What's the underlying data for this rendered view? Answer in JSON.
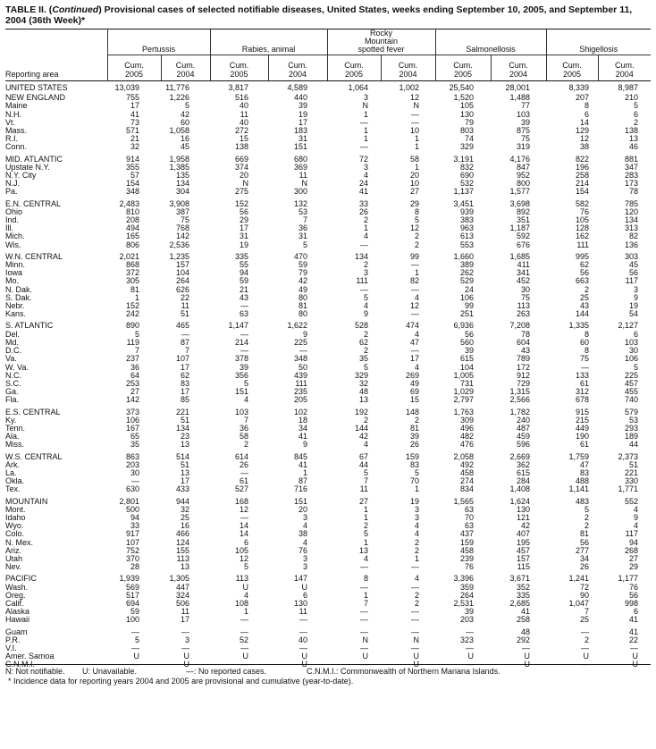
{
  "title": {
    "prefix": "TABLE II. (",
    "italic": "Continued",
    "rest": ") Provisional cases of selected notifiable diseases, United States, weeks ending September 10, 2005, and September 11, 2004 (36th Week)*"
  },
  "header": {
    "area_label": "Reporting area",
    "groups": [
      "Pertussis",
      "Rabies, animal",
      "Rocky Mountain spotted fever",
      "Salmonellosis",
      "Shigellosis"
    ],
    "sub": [
      {
        "l1": "Cum.",
        "l2": "2005"
      },
      {
        "l1": "Cum.",
        "l2": "2004"
      },
      {
        "l1": "Cum.",
        "l2": "2005"
      },
      {
        "l1": "Cum.",
        "l2": "2004"
      },
      {
        "l1": "Cum.",
        "l2": "2005"
      },
      {
        "l1": "Cum.",
        "l2": "2004"
      },
      {
        "l1": "Cum.",
        "l2": "2005"
      },
      {
        "l1": "Cum.",
        "l2": "2004"
      },
      {
        "l1": "Cum.",
        "l2": "2005"
      },
      {
        "l1": "Cum.",
        "l2": "2004"
      }
    ]
  },
  "row_groups": [
    [
      [
        "UNITED STATES",
        "13,039",
        "11,776",
        "3,817",
        "4,589",
        "1,064",
        "1,002",
        "25,540",
        "28,001",
        "8,339",
        "8,987"
      ]
    ],
    [
      [
        "NEW ENGLAND",
        "755",
        "1,226",
        "516",
        "440",
        "3",
        "12",
        "1,520",
        "1,488",
        "207",
        "210"
      ],
      [
        "Maine",
        "17",
        "5",
        "40",
        "39",
        "N",
        "N",
        "105",
        "77",
        "8",
        "5"
      ],
      [
        "N.H.",
        "41",
        "42",
        "11",
        "19",
        "1",
        "—",
        "130",
        "103",
        "6",
        "6"
      ],
      [
        "Vt.",
        "73",
        "60",
        "40",
        "17",
        "—",
        "—",
        "79",
        "39",
        "14",
        "2"
      ],
      [
        "Mass.",
        "571",
        "1,058",
        "272",
        "183",
        "1",
        "10",
        "803",
        "875",
        "129",
        "138"
      ],
      [
        "R.I.",
        "21",
        "16",
        "15",
        "31",
        "1",
        "1",
        "74",
        "75",
        "12",
        "13"
      ],
      [
        "Conn.",
        "32",
        "45",
        "138",
        "151",
        "—",
        "1",
        "329",
        "319",
        "38",
        "46"
      ]
    ],
    [
      [
        "MID. ATLANTIC",
        "914",
        "1,958",
        "669",
        "680",
        "72",
        "58",
        "3,191",
        "4,176",
        "822",
        "881"
      ],
      [
        "Upstate N.Y.",
        "355",
        "1,385",
        "374",
        "369",
        "3",
        "1",
        "832",
        "847",
        "196",
        "347"
      ],
      [
        "N.Y. City",
        "57",
        "135",
        "20",
        "11",
        "4",
        "20",
        "690",
        "952",
        "258",
        "283"
      ],
      [
        "N.J.",
        "154",
        "134",
        "N",
        "N",
        "24",
        "10",
        "532",
        "800",
        "214",
        "173"
      ],
      [
        "Pa.",
        "348",
        "304",
        "275",
        "300",
        "41",
        "27",
        "1,137",
        "1,577",
        "154",
        "78"
      ]
    ],
    [
      [
        "E.N. CENTRAL",
        "2,483",
        "3,908",
        "152",
        "132",
        "33",
        "29",
        "3,451",
        "3,698",
        "582",
        "785"
      ],
      [
        "Ohio",
        "810",
        "387",
        "56",
        "53",
        "26",
        "8",
        "939",
        "892",
        "76",
        "120"
      ],
      [
        "Ind.",
        "208",
        "75",
        "29",
        "7",
        "2",
        "5",
        "383",
        "351",
        "105",
        "134"
      ],
      [
        "Ill.",
        "494",
        "768",
        "17",
        "36",
        "1",
        "12",
        "963",
        "1,187",
        "128",
        "313"
      ],
      [
        "Mich.",
        "165",
        "142",
        "31",
        "31",
        "4",
        "2",
        "613",
        "592",
        "162",
        "82"
      ],
      [
        "Wis.",
        "806",
        "2,536",
        "19",
        "5",
        "—",
        "2",
        "553",
        "676",
        "111",
        "136"
      ]
    ],
    [
      [
        "W.N. CENTRAL",
        "2,021",
        "1,235",
        "335",
        "470",
        "134",
        "99",
        "1,660",
        "1,685",
        "995",
        "303"
      ],
      [
        "Minn.",
        "868",
        "157",
        "55",
        "59",
        "2",
        "—",
        "389",
        "411",
        "62",
        "45"
      ],
      [
        "Iowa",
        "372",
        "104",
        "94",
        "79",
        "3",
        "1",
        "262",
        "341",
        "56",
        "56"
      ],
      [
        "Mo.",
        "305",
        "264",
        "59",
        "42",
        "111",
        "82",
        "529",
        "452",
        "663",
        "117"
      ],
      [
        "N. Dak.",
        "81",
        "626",
        "21",
        "49",
        "—",
        "—",
        "24",
        "30",
        "2",
        "3"
      ],
      [
        "S. Dak.",
        "1",
        "22",
        "43",
        "80",
        "5",
        "4",
        "106",
        "75",
        "25",
        "9"
      ],
      [
        "Nebr.",
        "152",
        "11",
        "—",
        "81",
        "4",
        "12",
        "99",
        "113",
        "43",
        "19"
      ],
      [
        "Kans.",
        "242",
        "51",
        "63",
        "80",
        "9",
        "—",
        "251",
        "263",
        "144",
        "54"
      ]
    ],
    [
      [
        "S. ATLANTIC",
        "890",
        "465",
        "1,147",
        "1,622",
        "528",
        "474",
        "6,936",
        "7,208",
        "1,335",
        "2,127"
      ],
      [
        "Del.",
        "5",
        "—",
        "—",
        "9",
        "2",
        "4",
        "56",
        "78",
        "8",
        "6"
      ],
      [
        "Md.",
        "119",
        "87",
        "214",
        "225",
        "62",
        "47",
        "560",
        "604",
        "60",
        "103"
      ],
      [
        "D.C.",
        "7",
        "7",
        "—",
        "—",
        "2",
        "—",
        "39",
        "43",
        "8",
        "30"
      ],
      [
        "Va.",
        "237",
        "107",
        "378",
        "348",
        "35",
        "17",
        "615",
        "789",
        "75",
        "106"
      ],
      [
        "W. Va.",
        "36",
        "17",
        "39",
        "50",
        "5",
        "4",
        "104",
        "172",
        "—",
        "5"
      ],
      [
        "N.C.",
        "64",
        "62",
        "356",
        "439",
        "329",
        "269",
        "1,005",
        "912",
        "133",
        "225"
      ],
      [
        "S.C.",
        "253",
        "83",
        "5",
        "111",
        "32",
        "49",
        "731",
        "729",
        "61",
        "457"
      ],
      [
        "Ga.",
        "27",
        "17",
        "151",
        "235",
        "48",
        "69",
        "1,029",
        "1,315",
        "312",
        "455"
      ],
      [
        "Fla.",
        "142",
        "85",
        "4",
        "205",
        "13",
        "15",
        "2,797",
        "2,566",
        "678",
        "740"
      ]
    ],
    [
      [
        "E.S. CENTRAL",
        "373",
        "221",
        "103",
        "102",
        "192",
        "148",
        "1,763",
        "1,782",
        "915",
        "579"
      ],
      [
        "Ky.",
        "106",
        "51",
        "7",
        "18",
        "2",
        "2",
        "309",
        "240",
        "215",
        "53"
      ],
      [
        "Tenn.",
        "167",
        "134",
        "36",
        "34",
        "144",
        "81",
        "496",
        "487",
        "449",
        "293"
      ],
      [
        "Ala.",
        "65",
        "23",
        "58",
        "41",
        "42",
        "39",
        "482",
        "459",
        "190",
        "189"
      ],
      [
        "Miss.",
        "35",
        "13",
        "2",
        "9",
        "4",
        "26",
        "476",
        "596",
        "61",
        "44"
      ]
    ],
    [
      [
        "W.S. CENTRAL",
        "863",
        "514",
        "614",
        "845",
        "67",
        "159",
        "2,058",
        "2,669",
        "1,759",
        "2,373"
      ],
      [
        "Ark.",
        "203",
        "51",
        "26",
        "41",
        "44",
        "83",
        "492",
        "362",
        "47",
        "51"
      ],
      [
        "La.",
        "30",
        "13",
        "—",
        "1",
        "5",
        "5",
        "458",
        "615",
        "83",
        "221"
      ],
      [
        "Okla.",
        "—",
        "17",
        "61",
        "87",
        "7",
        "70",
        "274",
        "284",
        "488",
        "330"
      ],
      [
        "Tex.",
        "630",
        "433",
        "527",
        "716",
        "11",
        "1",
        "834",
        "1,408",
        "1,141",
        "1,771"
      ]
    ],
    [
      [
        "MOUNTAIN",
        "2,801",
        "944",
        "168",
        "151",
        "27",
        "19",
        "1,565",
        "1,624",
        "483",
        "552"
      ],
      [
        "Mont.",
        "500",
        "32",
        "12",
        "20",
        "1",
        "3",
        "63",
        "130",
        "5",
        "4"
      ],
      [
        "Idaho",
        "94",
        "25",
        "—",
        "3",
        "1",
        "3",
        "70",
        "121",
        "2",
        "9"
      ],
      [
        "Wyo.",
        "33",
        "16",
        "14",
        "4",
        "2",
        "4",
        "63",
        "42",
        "2",
        "4"
      ],
      [
        "Colo.",
        "917",
        "466",
        "14",
        "38",
        "5",
        "4",
        "437",
        "407",
        "81",
        "117"
      ],
      [
        "N. Mex.",
        "107",
        "124",
        "6",
        "4",
        "1",
        "2",
        "159",
        "195",
        "56",
        "94"
      ],
      [
        "Ariz.",
        "752",
        "155",
        "105",
        "76",
        "13",
        "2",
        "458",
        "457",
        "277",
        "268"
      ],
      [
        "Utah",
        "370",
        "113",
        "12",
        "3",
        "4",
        "1",
        "239",
        "157",
        "34",
        "27"
      ],
      [
        "Nev.",
        "28",
        "13",
        "5",
        "3",
        "—",
        "—",
        "76",
        "115",
        "26",
        "29"
      ]
    ],
    [
      [
        "PACIFIC",
        "1,939",
        "1,305",
        "113",
        "147",
        "8",
        "4",
        "3,396",
        "3,671",
        "1,241",
        "1,177"
      ],
      [
        "Wash.",
        "569",
        "447",
        "U",
        "U",
        "—",
        "—",
        "359",
        "352",
        "72",
        "76"
      ],
      [
        "Oreg.",
        "517",
        "324",
        "4",
        "6",
        "1",
        "2",
        "264",
        "335",
        "90",
        "56"
      ],
      [
        "Calif.",
        "694",
        "506",
        "108",
        "130",
        "7",
        "2",
        "2,531",
        "2,685",
        "1,047",
        "998"
      ],
      [
        "Alaska",
        "59",
        "11",
        "1",
        "11",
        "—",
        "—",
        "39",
        "41",
        "7",
        "6"
      ],
      [
        "Hawaii",
        "100",
        "17",
        "—",
        "—",
        "—",
        "—",
        "203",
        "258",
        "25",
        "41"
      ]
    ],
    [
      [
        "Guam",
        "—",
        "—",
        "—",
        "—",
        "—",
        "—",
        "—",
        "48",
        "—",
        "41"
      ],
      [
        "P.R.",
        "5",
        "3",
        "52",
        "40",
        "N",
        "N",
        "323",
        "292",
        "2",
        "22"
      ],
      [
        "V.I.",
        "—",
        "—",
        "—",
        "—",
        "—",
        "—",
        "—",
        "—",
        "—",
        "—"
      ],
      [
        "Amer. Samoa",
        "U",
        "U",
        "U",
        "U",
        "U",
        "U",
        "U",
        "U",
        "U",
        "U"
      ],
      [
        "C.N.M.I.",
        "—",
        "U",
        "—",
        "U",
        "—",
        "U",
        "—",
        "U",
        "—",
        "U"
      ]
    ]
  ],
  "footer": {
    "legend_n": "N: Not notifiable.",
    "legend_u": "U: Unavailable.",
    "legend_dash": "—: No reported cases.",
    "legend_cnmi": "C.N.M.I.: Commonwealth of Northern Mariana Islands.",
    "note": "* Incidence data for reporting years 2004 and 2005 are provisional and cumulative (year-to-date)."
  }
}
